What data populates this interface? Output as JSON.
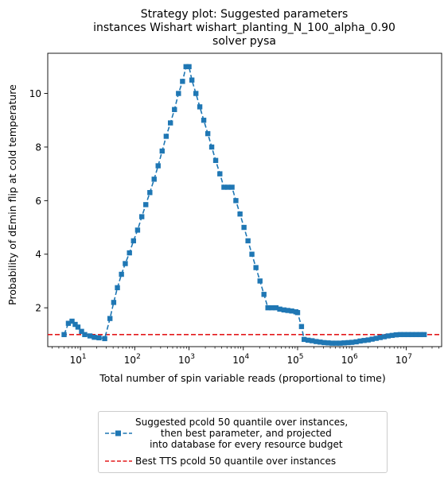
{
  "chart_data": {
    "type": "line",
    "title_lines": [
      "Strategy plot: Suggested parameters",
      "instances Wishart wishart_planting_N_100_alpha_0.90",
      "solver pysa"
    ],
    "xlabel": "Total number of spin variable reads (proportional to time)",
    "ylabel": "Probability of dEmin flip at cold temperature",
    "xscale": "log",
    "xlim": [
      2.5,
      45000000
    ],
    "ylim": [
      0.55,
      11.5
    ],
    "x_ticks": [
      {
        "value": 10,
        "base": "10",
        "exp": "1"
      },
      {
        "value": 100,
        "base": "10",
        "exp": "2"
      },
      {
        "value": 1000,
        "base": "10",
        "exp": "3"
      },
      {
        "value": 10000,
        "base": "10",
        "exp": "4"
      },
      {
        "value": 100000,
        "base": "10",
        "exp": "5"
      },
      {
        "value": 1000000,
        "base": "10",
        "exp": "6"
      },
      {
        "value": 10000000,
        "base": "10",
        "exp": "7"
      }
    ],
    "y_ticks": [
      2,
      4,
      6,
      8,
      10
    ],
    "grid": false,
    "legend_position": "below plot, centered",
    "series": [
      {
        "name": "Suggested pcold 50 quantile over instances,\n   then best parameter, and projected\n   into database for every resource budget",
        "style": "dashed line with square markers",
        "color": "#1f77b4",
        "points": [
          [
            5,
            1.0
          ],
          [
            6,
            1.42
          ],
          [
            7,
            1.5
          ],
          [
            8,
            1.38
          ],
          [
            9,
            1.28
          ],
          [
            10.5,
            1.12
          ],
          [
            12,
            1.0
          ],
          [
            15,
            0.95
          ],
          [
            18,
            0.9
          ],
          [
            22,
            0.88
          ],
          [
            28,
            0.85
          ],
          [
            35,
            1.6
          ],
          [
            41,
            2.2
          ],
          [
            48,
            2.75
          ],
          [
            57,
            3.25
          ],
          [
            67,
            3.65
          ],
          [
            80,
            4.05
          ],
          [
            95,
            4.5
          ],
          [
            113,
            4.9
          ],
          [
            135,
            5.4
          ],
          [
            160,
            5.85
          ],
          [
            190,
            6.3
          ],
          [
            228,
            6.8
          ],
          [
            270,
            7.3
          ],
          [
            320,
            7.85
          ],
          [
            380,
            8.4
          ],
          [
            455,
            8.9
          ],
          [
            540,
            9.4
          ],
          [
            640,
            10.0
          ],
          [
            760,
            10.45
          ],
          [
            880,
            11.0
          ],
          [
            1000,
            11.0
          ],
          [
            1130,
            10.5
          ],
          [
            1340,
            10.0
          ],
          [
            1580,
            9.5
          ],
          [
            1870,
            9.0
          ],
          [
            2220,
            8.5
          ],
          [
            2620,
            8.0
          ],
          [
            3100,
            7.5
          ],
          [
            3700,
            7.0
          ],
          [
            4400,
            6.5
          ],
          [
            5200,
            6.5
          ],
          [
            6200,
            6.5
          ],
          [
            7300,
            6.0
          ],
          [
            8700,
            5.5
          ],
          [
            10300,
            5.0
          ],
          [
            12200,
            4.5
          ],
          [
            14400,
            4.0
          ],
          [
            17100,
            3.5
          ],
          [
            20300,
            3.0
          ],
          [
            24000,
            2.5
          ],
          [
            28400,
            2.0
          ],
          [
            33700,
            2.0
          ],
          [
            40000,
            2.0
          ],
          [
            47000,
            1.95
          ],
          [
            56000,
            1.92
          ],
          [
            66000,
            1.9
          ],
          [
            78000,
            1.88
          ],
          [
            93000,
            1.85
          ],
          [
            100000,
            1.82
          ],
          [
            118000,
            1.3
          ],
          [
            132000,
            0.82
          ],
          [
            156000,
            0.79
          ],
          [
            185000,
            0.77
          ],
          [
            220000,
            0.74
          ],
          [
            260000,
            0.72
          ],
          [
            308000,
            0.7
          ],
          [
            365000,
            0.69
          ],
          [
            433000,
            0.68
          ],
          [
            513000,
            0.68
          ],
          [
            608000,
            0.68
          ],
          [
            720000,
            0.69
          ],
          [
            853000,
            0.7
          ],
          [
            1000000,
            0.71
          ],
          [
            1200000,
            0.73
          ],
          [
            1420000,
            0.76
          ],
          [
            1680000,
            0.78
          ],
          [
            2000000,
            0.8
          ],
          [
            2360000,
            0.83
          ],
          [
            2800000,
            0.86
          ],
          [
            3320000,
            0.89
          ],
          [
            3930000,
            0.92
          ],
          [
            4660000,
            0.95
          ],
          [
            5520000,
            0.97
          ],
          [
            6540000,
            0.99
          ],
          [
            7750000,
            1.0
          ],
          [
            9180000,
            1.0
          ],
          [
            10900000,
            1.0
          ],
          [
            12900000,
            1.0
          ],
          [
            15300000,
            1.0
          ],
          [
            18100000,
            1.0
          ],
          [
            21500000,
            1.0
          ]
        ]
      },
      {
        "name": "Best TTS pcold 50 quantile over instances",
        "style": "dashed horizontal line",
        "color": "#e31a1c",
        "y": 1.0
      }
    ]
  }
}
